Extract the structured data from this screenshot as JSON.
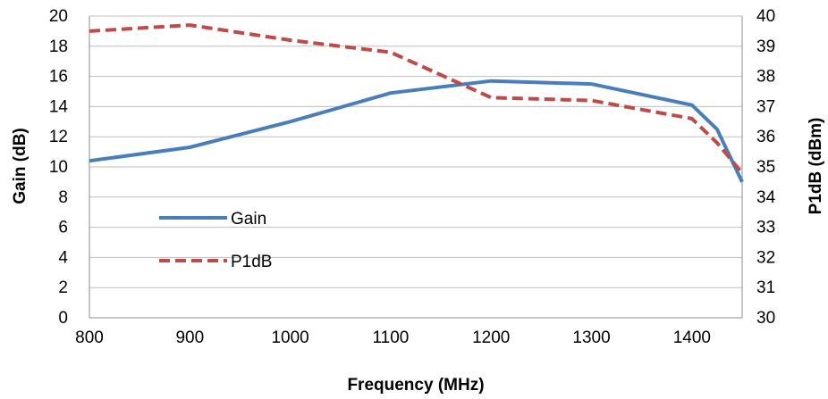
{
  "chart_data": {
    "type": "line",
    "title": "",
    "xlabel": "Frequency (MHz)",
    "ylabel": "Gain (dB)",
    "y2label": "P1dB (dBm)",
    "xlim": [
      800,
      1450
    ],
    "ylim": [
      0,
      20
    ],
    "y2lim": [
      30,
      40
    ],
    "x_ticks": [
      800,
      900,
      1000,
      1100,
      1200,
      1300,
      1400
    ],
    "y_ticks": [
      0,
      2,
      4,
      6,
      8,
      10,
      12,
      14,
      16,
      18,
      20
    ],
    "y2_ticks": [
      30,
      31,
      32,
      33,
      34,
      35,
      36,
      37,
      38,
      39,
      40
    ],
    "grid": true,
    "legend_position": "lower-left inside plot",
    "series": [
      {
        "name": "Gain",
        "axis": "left",
        "color": "#4a7ebb",
        "style": "solid",
        "x": [
          800,
          900,
          1000,
          1100,
          1200,
          1300,
          1400,
          1425,
          1450
        ],
        "values": [
          10.4,
          11.3,
          13.0,
          14.9,
          15.7,
          15.5,
          14.1,
          12.5,
          9.0
        ]
      },
      {
        "name": "P1dB",
        "axis": "right",
        "color": "#be4b48",
        "style": "dashed",
        "x": [
          800,
          900,
          1000,
          1100,
          1200,
          1300,
          1400,
          1425,
          1450
        ],
        "values": [
          39.5,
          39.7,
          39.2,
          38.8,
          37.3,
          37.2,
          36.6,
          35.8,
          34.8
        ]
      }
    ]
  }
}
